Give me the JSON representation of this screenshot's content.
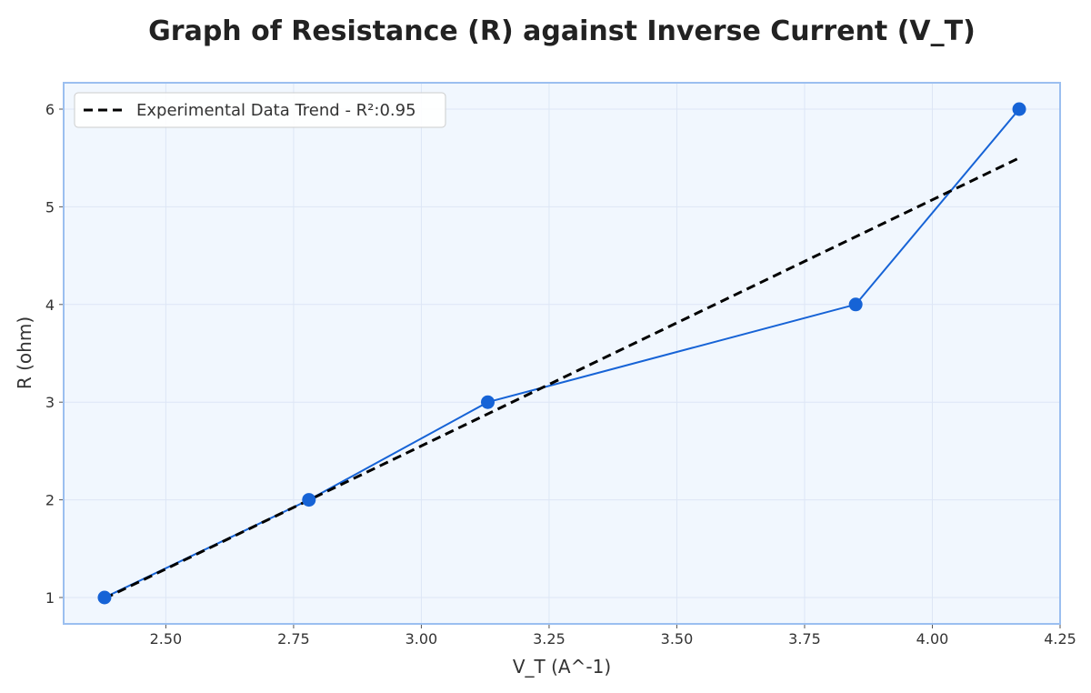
{
  "chart_data": {
    "type": "line",
    "title": "Graph of Resistance (R) against Inverse Current (V_T)",
    "xlabel": "V_T (A^-1)",
    "ylabel": "R (ohm)",
    "xlim": [
      2.3,
      4.25
    ],
    "ylim": [
      0.73,
      6.27
    ],
    "xticks": [
      2.5,
      2.75,
      3.0,
      3.25,
      3.5,
      3.75,
      4.0,
      4.25
    ],
    "xtick_labels": [
      "2.50",
      "2.75",
      "3.00",
      "3.25",
      "3.50",
      "3.75",
      "4.00",
      "4.25"
    ],
    "yticks": [
      1,
      2,
      3,
      4,
      5,
      6
    ],
    "ytick_labels": [
      "1",
      "2",
      "3",
      "4",
      "5",
      "6"
    ],
    "grid": true,
    "legend_position": "top-left",
    "series": [
      {
        "kind": "data",
        "x": [
          2.38,
          2.78,
          3.13,
          3.85,
          4.17
        ],
        "y": [
          1,
          2,
          3,
          4,
          6
        ],
        "color": "#1663d6",
        "marker": "circle"
      },
      {
        "kind": "trend",
        "name": "Experimental Data Trend - R²:0.95",
        "x": [
          2.38,
          4.17
        ],
        "y": [
          0.99,
          5.5
        ],
        "color": "#000000",
        "style": "dashed"
      }
    ],
    "colors": {
      "plot_background": "#f1f7fe",
      "frame": "#9bbff0",
      "grid": "#dde6f5"
    }
  }
}
